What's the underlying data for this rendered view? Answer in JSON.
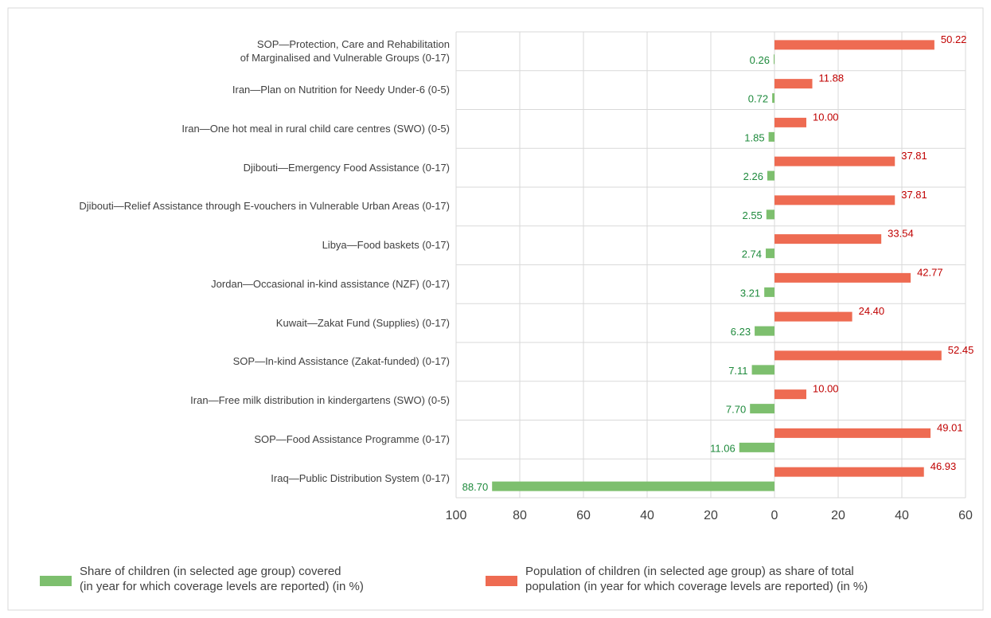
{
  "chart_data": {
    "type": "bar",
    "orientation": "horizontal",
    "categories": [
      "SOP—Protection, Care and Rehabilitation\nof Marginalised and Vulnerable Groups (0-17)",
      "Iran—Plan on Nutrition for Needy Under-6  (0-5)",
      "Iran—One hot meal in rural child care centres (SWO) (0-5)",
      "Djibouti—Emergency Food Assistance (0-17)",
      "Djibouti—Relief Assistance through E-vouchers in Vulnerable Urban Areas (0-17)",
      "Libya—Food baskets (0-17)",
      "Jordan—Occasional in-kind assistance (NZF) (0-17)",
      "Kuwait—Zakat Fund (Supplies) (0-17)",
      "SOP—In-kind Assistance (Zakat-funded) (0-17)",
      "Iran—Free milk distribution in kindergartens (SWO) (0-5)",
      "SOP—Food Assistance Programme (0-17)",
      "Iraq—Public Distribution System (0-17)"
    ],
    "series": [
      {
        "name": "Share of children (in selected age group) covered\n(in year for which coverage levels are reported) (in %)",
        "color": "#7dbf6e",
        "label_color": "#1e8a3c",
        "values": [
          0.26,
          0.72,
          1.85,
          2.26,
          2.55,
          2.74,
          3.21,
          6.23,
          7.11,
          7.7,
          11.06,
          88.7
        ],
        "value_labels": [
          "0.26",
          "0.72",
          "1.85",
          "2.26",
          "2.55",
          "2.74",
          "3.21",
          "6.23",
          "7.11",
          "7.70",
          "11.06",
          "88.70"
        ]
      },
      {
        "name": "Population of children (in selected age group) as share of total\npopulation (in year for which coverage levels are reported) (in %)",
        "color": "#ee6b52",
        "label_color": "#c00000",
        "values": [
          50.22,
          11.88,
          10.0,
          37.81,
          37.81,
          33.54,
          42.77,
          24.4,
          52.45,
          10.0,
          49.01,
          46.93
        ],
        "value_labels": [
          "50.22",
          "11.88",
          "10.00",
          "37.81",
          "37.81",
          "33.54",
          "42.77",
          "24.40",
          "52.45",
          "10.00",
          "49.01",
          "46.93"
        ]
      }
    ],
    "xlim": [
      -100,
      60
    ],
    "xticks": [
      {
        "value": -100,
        "label": "100"
      },
      {
        "value": -80,
        "label": "80"
      },
      {
        "value": -60,
        "label": "60"
      },
      {
        "value": -40,
        "label": "40"
      },
      {
        "value": -20,
        "label": "20"
      },
      0,
      20,
      40,
      60
    ],
    "grid": true,
    "legend": "bottom"
  }
}
